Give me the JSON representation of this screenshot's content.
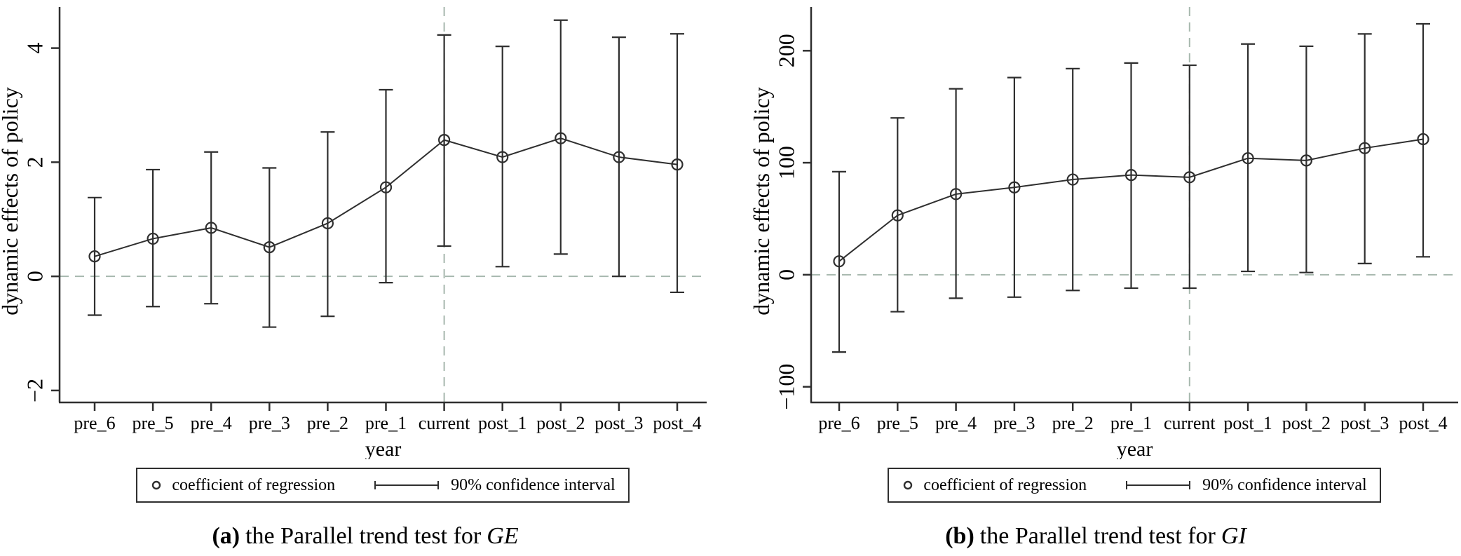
{
  "colors": {
    "background": "#ffffff",
    "line": "#2f2f2f",
    "reference_dashed": "#a7b8ae",
    "text": "#000000"
  },
  "chart_data": [
    {
      "type": "line",
      "panel": "a",
      "caption": {
        "label": "(a)",
        "text": "the Parallel trend test for",
        "emphasis": "GE"
      },
      "title": "",
      "xlabel": "year",
      "ylabel": "dynamic effects of policy",
      "categories": [
        "pre_6",
        "pre_5",
        "pre_4",
        "pre_3",
        "pre_2",
        "pre_1",
        "current",
        "post_1",
        "post_2",
        "post_3",
        "post_4"
      ],
      "series": [
        {
          "name": "coefficient of regression",
          "values": [
            0.35,
            0.66,
            0.85,
            0.51,
            0.93,
            1.56,
            2.39,
            2.09,
            2.42,
            2.09,
            1.96
          ]
        }
      ],
      "ci": {
        "level": "90%",
        "low": [
          -0.68,
          -0.53,
          -0.48,
          -0.89,
          -0.7,
          -0.11,
          0.53,
          0.17,
          0.39,
          0.0,
          -0.28
        ],
        "high": [
          1.38,
          1.87,
          2.18,
          1.9,
          2.53,
          3.27,
          4.23,
          4.03,
          4.49,
          4.19,
          4.25
        ]
      },
      "legend": [
        "coefficient of regression",
        "90% confidence interval"
      ],
      "legend_position": "bottom",
      "yticks": [
        -2,
        0,
        2,
        4
      ],
      "ytick_labels": [
        "−2",
        "0",
        "2",
        "4"
      ],
      "ylim": [
        -2.21,
        4.72
      ],
      "grid": false,
      "reference_lines": {
        "horizontal_at": 0,
        "vertical_at_category": "current"
      }
    },
    {
      "type": "line",
      "panel": "b",
      "caption": {
        "label": "(b)",
        "text": "the Parallel trend test for",
        "emphasis": "GI"
      },
      "title": "",
      "xlabel": "year",
      "ylabel": "dynamic effects of policy",
      "categories": [
        "pre_6",
        "pre_5",
        "pre_4",
        "pre_3",
        "pre_2",
        "pre_1",
        "current",
        "post_1",
        "post_2",
        "post_3",
        "post_4"
      ],
      "series": [
        {
          "name": "coefficient of regression",
          "values": [
            12,
            53,
            72,
            78,
            85,
            89,
            87,
            104,
            102,
            113,
            121
          ]
        }
      ],
      "ci": {
        "level": "90%",
        "low": [
          -69,
          -33,
          -21,
          -20,
          -14,
          -12,
          -12,
          3,
          2,
          10,
          16
        ],
        "high": [
          92,
          140,
          166,
          176,
          184,
          189,
          187,
          206,
          204,
          215,
          224
        ]
      },
      "legend": [
        "coefficient of regression",
        "90% confidence interval"
      ],
      "legend_position": "bottom",
      "yticks": [
        -100,
        0,
        100,
        200
      ],
      "ytick_labels": [
        "−100",
        "0",
        "100",
        "200"
      ],
      "ylim": [
        -114,
        239
      ],
      "grid": false,
      "reference_lines": {
        "horizontal_at": 0,
        "vertical_at_category": "current"
      }
    }
  ]
}
